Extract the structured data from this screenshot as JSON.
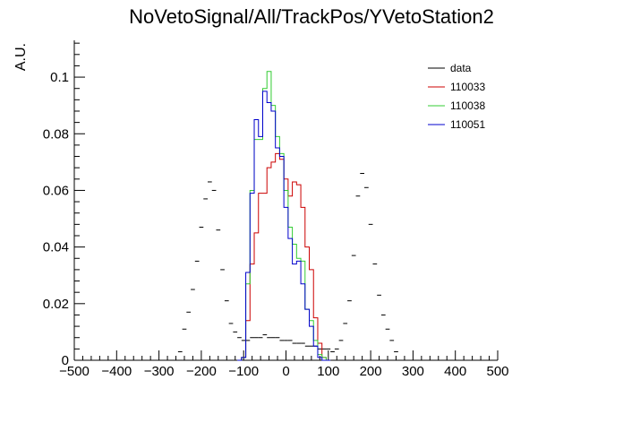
{
  "chart_data": {
    "type": "line",
    "title": "NoVetoSignal/All/TrackPos/YVetoStation2",
    "xlabel": "",
    "ylabel": "A.U.",
    "xlim": [
      -500,
      500
    ],
    "ylim": [
      0,
      0.113
    ],
    "bin_width": 10,
    "x_ticks": [
      -500,
      -400,
      -300,
      -200,
      -100,
      0,
      100,
      200,
      300,
      400,
      500
    ],
    "x_tick_labels": [
      "−500",
      "−400",
      "−300",
      "−200",
      "−100",
      "0",
      "100",
      "200",
      "300",
      "400",
      "500"
    ],
    "y_ticks": [
      0,
      0.02,
      0.04,
      0.06,
      0.08,
      0.1
    ],
    "y_tick_labels": [
      "0",
      "0.02",
      "0.04",
      "0.06",
      "0.08",
      "0.1"
    ],
    "legend_position": "top-right",
    "grid": false,
    "series": [
      {
        "name": "data",
        "style": "points",
        "color": "#000000",
        "x": [
          -250,
          -240,
          -230,
          -220,
          -210,
          -200,
          -190,
          -180,
          -170,
          -160,
          -150,
          -140,
          -130,
          -120,
          -110,
          -100,
          -90,
          -80,
          -70,
          -60,
          -50,
          -40,
          -30,
          -20,
          -10,
          0,
          10,
          20,
          30,
          40,
          50,
          60,
          70,
          80,
          90,
          100,
          110,
          120,
          130,
          140,
          150,
          160,
          170,
          180,
          190,
          200,
          210,
          220,
          230,
          240,
          250,
          260
        ],
        "y": [
          0.003,
          0.011,
          0.017,
          0.025,
          0.035,
          0.047,
          0.057,
          0.063,
          0.06,
          0.046,
          0.032,
          0.021,
          0.013,
          0.01,
          0.008,
          0.007,
          0.007,
          0.008,
          0.008,
          0.008,
          0.009,
          0.008,
          0.008,
          0.008,
          0.007,
          0.007,
          0.007,
          0.006,
          0.006,
          0.006,
          0.005,
          0.005,
          0.005,
          0.004,
          0.004,
          0.004,
          0.003,
          0.004,
          0.007,
          0.013,
          0.021,
          0.037,
          0.058,
          0.066,
          0.061,
          0.048,
          0.034,
          0.023,
          0.016,
          0.011,
          0.007,
          0.003
        ]
      },
      {
        "name": "110033",
        "style": "step",
        "color": "#cc0000",
        "x": [
          -110,
          -100,
          -90,
          -80,
          -70,
          -60,
          -50,
          -40,
          -30,
          -20,
          -10,
          0,
          10,
          20,
          30,
          40,
          50,
          60,
          70,
          80,
          90,
          100
        ],
        "y": [
          0,
          0.001,
          0.014,
          0.034,
          0.045,
          0.059,
          0.059,
          0.068,
          0.07,
          0.073,
          0.071,
          0.064,
          0.058,
          0.063,
          0.062,
          0.054,
          0.04,
          0.032,
          0.015,
          0.006,
          0.001,
          0
        ]
      },
      {
        "name": "110038",
        "style": "step",
        "color": "#33cc33",
        "x": [
          -110,
          -100,
          -90,
          -80,
          -70,
          -60,
          -50,
          -40,
          -30,
          -20,
          -10,
          0,
          10,
          20,
          30,
          40,
          50,
          60,
          70,
          80,
          90,
          100
        ],
        "y": [
          0,
          0.001,
          0.027,
          0.06,
          0.078,
          0.078,
          0.096,
          0.102,
          0.09,
          0.079,
          0.073,
          0.06,
          0.047,
          0.041,
          0.036,
          0.035,
          0.018,
          0.014,
          0.007,
          0.002,
          0.001,
          0
        ]
      },
      {
        "name": "110051",
        "style": "step",
        "color": "#0000cc",
        "x": [
          -110,
          -100,
          -90,
          -80,
          -70,
          -60,
          -50,
          -40,
          -30,
          -20,
          -10,
          0,
          10,
          20,
          30,
          40,
          50,
          60,
          70,
          80,
          90,
          100
        ],
        "y": [
          0,
          0.001,
          0.031,
          0.059,
          0.085,
          0.079,
          0.095,
          0.091,
          0.088,
          0.075,
          0.072,
          0.054,
          0.043,
          0.034,
          0.035,
          0.027,
          0.018,
          0.012,
          0.005,
          0.001,
          0,
          0
        ]
      }
    ]
  }
}
